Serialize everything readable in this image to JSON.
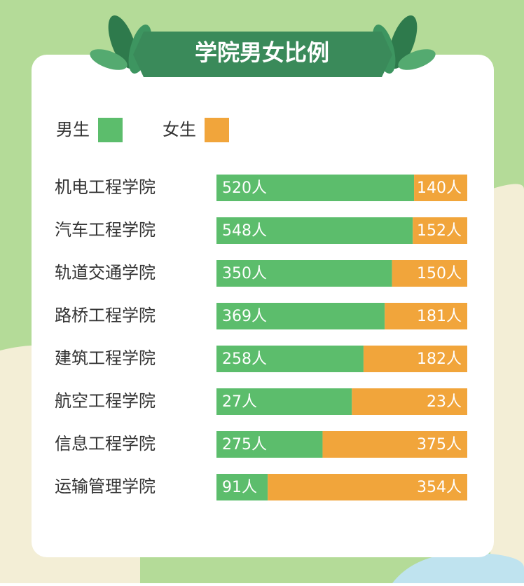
{
  "chart_data": {
    "type": "bar",
    "orientation": "horizontal",
    "stacking": "percent",
    "title": "学院男女比例",
    "categories": [
      "机电工程学院",
      "汽车工程学院",
      "轨道交通学院",
      "路桥工程学院",
      "建筑工程学院",
      "航空工程学院",
      "信息工程学院",
      "运输管理学院"
    ],
    "series": [
      {
        "name": "男生",
        "color": "#5cbd6c",
        "values": [
          520,
          548,
          350,
          369,
          258,
          27,
          275,
          91
        ],
        "value_labels": [
          "520人",
          "548人",
          "350人",
          "369人",
          "258人",
          "27人",
          "275人",
          "91人"
        ]
      },
      {
        "name": "女生",
        "color": "#f1a53b",
        "values": [
          140,
          152,
          150,
          181,
          182,
          23,
          375,
          354
        ],
        "value_labels": [
          "140人",
          "152人",
          "150人",
          "181人",
          "182人",
          "23人",
          "375人",
          "354人"
        ]
      }
    ]
  }
}
